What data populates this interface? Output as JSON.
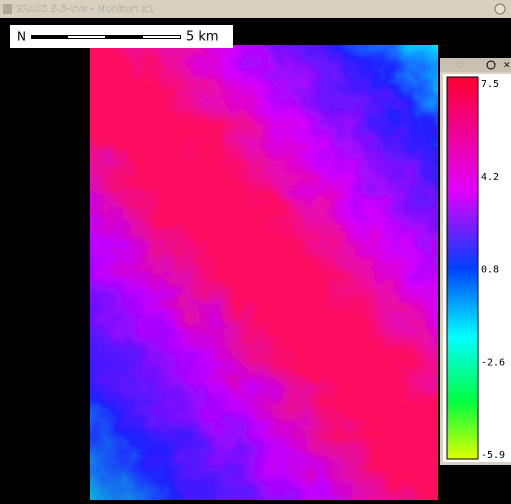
{
  "window": {
    "title": "GRASS 5.3-cvs - Monitor: x1"
  },
  "north_arrow": {
    "label": "N"
  },
  "scalebar": {
    "label": "5 km"
  },
  "legend_window": {
    "title": "G",
    "labels": [
      "7.5",
      "4.2",
      "0.8",
      "-2.6",
      "-5.9"
    ]
  }
}
